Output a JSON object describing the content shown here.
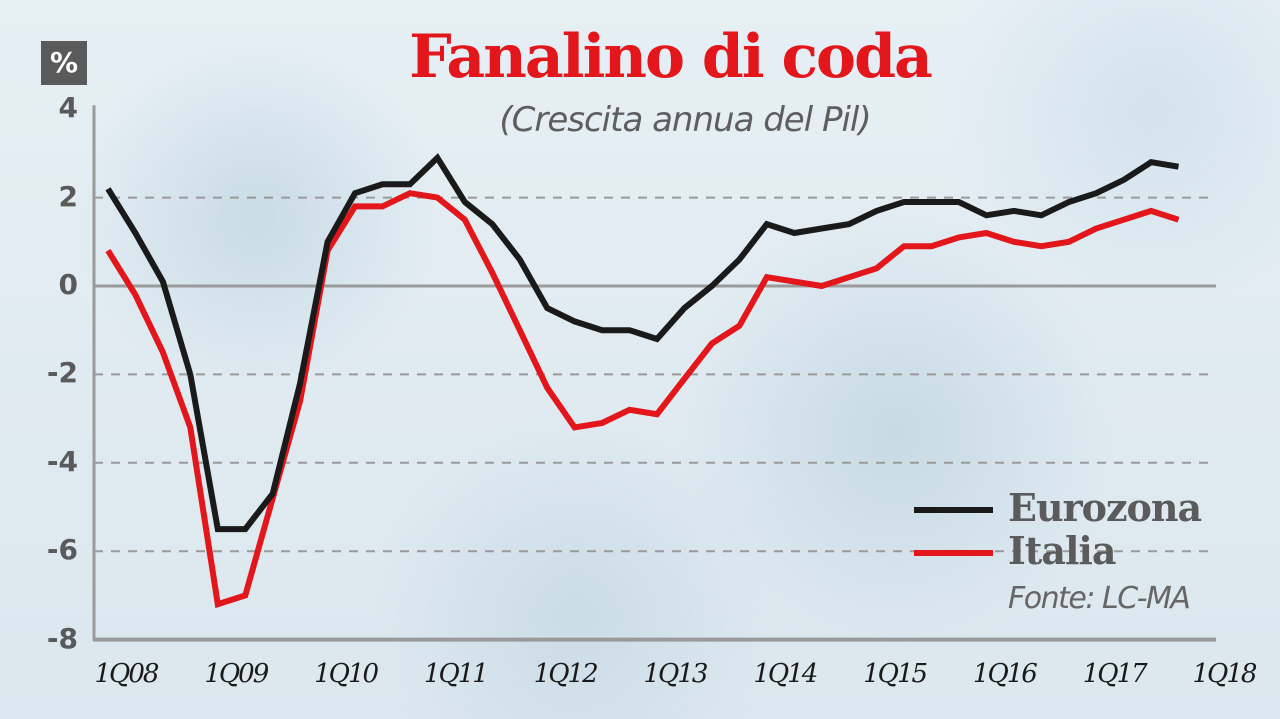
{
  "header": {
    "unit_badge": "%",
    "title": "Fanalino di coda",
    "subtitle": "(Crescita annua del Pil)"
  },
  "legend": {
    "eurozona": "Eurozona",
    "italia": "Italia",
    "source": "Fonte: LC-MA"
  },
  "colors": {
    "eurozona": "#1a1a1a",
    "italia": "#e3161b",
    "title": "#e3161b",
    "axis": "#9a9a9a",
    "grid": "#9a9a9a"
  },
  "y_ticks": [
    "4",
    "2",
    "0",
    "-2",
    "-4",
    "-6",
    "-8"
  ],
  "x_ticks": [
    "1Q08",
    "1Q09",
    "1Q10",
    "1Q11",
    "1Q12",
    "1Q13",
    "1Q14",
    "1Q15",
    "1Q16",
    "1Q17",
    "1Q18"
  ],
  "chart_data": {
    "type": "line",
    "title": "Fanalino di coda",
    "subtitle": "(Crescita annua del Pil)",
    "xlabel": "",
    "ylabel": "%",
    "ylim": [
      -8,
      4
    ],
    "yticks": [
      4,
      2,
      0,
      -2,
      -4,
      -6,
      -8
    ],
    "grid": "horizontal dashed at 2, -2, -4, -6; solid at 0",
    "legend_position": "bottom-right",
    "source": "Fonte: LC-MA",
    "x": [
      "1Q08",
      "2Q08",
      "3Q08",
      "4Q08",
      "1Q09",
      "2Q09",
      "3Q09",
      "4Q09",
      "1Q10",
      "2Q10",
      "3Q10",
      "4Q10",
      "1Q11",
      "2Q11",
      "3Q11",
      "4Q11",
      "1Q12",
      "2Q12",
      "3Q12",
      "4Q12",
      "1Q13",
      "2Q13",
      "3Q13",
      "4Q13",
      "1Q14",
      "2Q14",
      "3Q14",
      "4Q14",
      "1Q15",
      "2Q15",
      "3Q15",
      "4Q15",
      "1Q16",
      "2Q16",
      "3Q16",
      "4Q16",
      "1Q17",
      "2Q17",
      "3Q17",
      "4Q17"
    ],
    "series": [
      {
        "name": "Eurozona",
        "color": "#1a1a1a",
        "values": [
          2.2,
          1.2,
          0.1,
          -2.0,
          -5.5,
          -5.5,
          -4.7,
          -2.2,
          1.0,
          2.1,
          2.3,
          2.3,
          2.9,
          1.9,
          1.4,
          0.6,
          -0.5,
          -0.8,
          -1.0,
          -1.0,
          -1.2,
          -0.5,
          0.0,
          0.6,
          1.4,
          1.2,
          1.3,
          1.4,
          1.7,
          1.9,
          1.9,
          1.9,
          1.6,
          1.7,
          1.6,
          1.9,
          2.1,
          2.4,
          2.8,
          2.7
        ]
      },
      {
        "name": "Italia",
        "color": "#e3161b",
        "values": [
          0.8,
          -0.2,
          -1.5,
          -3.2,
          -7.2,
          -7.0,
          -4.8,
          -2.6,
          0.8,
          1.8,
          1.8,
          2.1,
          2.0,
          1.5,
          0.3,
          -1.0,
          -2.3,
          -3.2,
          -3.1,
          -2.8,
          -2.9,
          -2.1,
          -1.3,
          -0.9,
          0.2,
          0.1,
          0.0,
          0.2,
          0.4,
          0.9,
          0.9,
          1.1,
          1.2,
          1.0,
          0.9,
          1.0,
          1.3,
          1.5,
          1.7,
          1.5
        ]
      }
    ]
  }
}
